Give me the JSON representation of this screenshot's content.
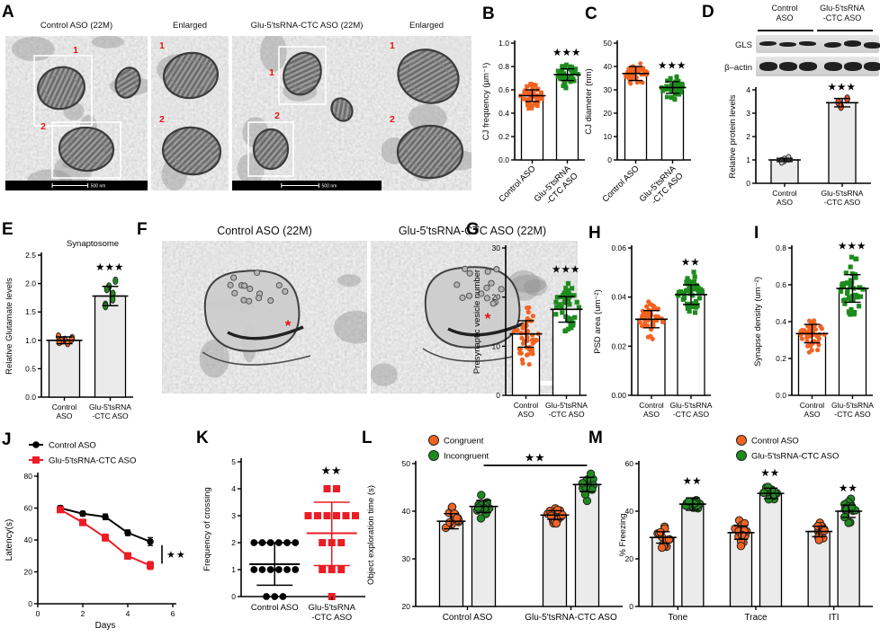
{
  "colors": {
    "orange": "#F26322",
    "green": "#1E8B1E",
    "red": "#EC1C24",
    "dark_red_dot": "#E8501E",
    "gray_dot": "#C8C8C8",
    "bar_gray": "#EBEBEB",
    "bar_white": "#FFFFFF",
    "black": "#000000",
    "em_bg": "#C4C4C4"
  },
  "panels": {
    "A": {
      "letter": "A",
      "titles": [
        "Control ASO (22M)",
        "Enlarged",
        "Glu-5'tsRNA-CTC ASO (22M)",
        "Enlarged"
      ],
      "region_labels": [
        "1",
        "2"
      ],
      "scale_label": "500 nm"
    },
    "B": {
      "letter": "B"
    },
    "C": {
      "letter": "C"
    },
    "D": {
      "letter": "D",
      "blot": {
        "group_headers": [
          "Control\nASO",
          "Glu-5'tsRNA\n-CTC ASO"
        ],
        "row_labels": [
          "GLS",
          "β–actin"
        ],
        "lanes_per_group": 3
      }
    },
    "E": {
      "letter": "E"
    },
    "F": {
      "letter": "F",
      "titles": [
        "Control ASO (22M)",
        "Glu-5'tsRNA-CTC ASO (22M)"
      ],
      "marker": "*"
    },
    "G": {
      "letter": "G"
    },
    "H": {
      "letter": "H"
    },
    "I": {
      "letter": "I"
    },
    "J": {
      "letter": "J"
    },
    "K": {
      "letter": "K"
    },
    "L": {
      "letter": "L"
    },
    "M": {
      "letter": "M"
    }
  },
  "chart_data": [
    {
      "id": "B",
      "type": "bar",
      "ylabel": "CJ frequency (µm⁻¹)",
      "ylim": [
        0,
        1
      ],
      "yticks": [
        "0.0",
        "0.2",
        "0.4",
        "0.6",
        "0.8",
        "1.0"
      ],
      "categories": [
        [
          "Control ASO"
        ],
        [
          "Glu-5'tsRNA",
          "-CTC ASO"
        ]
      ],
      "bar_fill": "#FFFFFF",
      "series": [
        {
          "name": "Control ASO",
          "mean": 0.55,
          "sd": 0.05,
          "n": 48,
          "color": "#F26322",
          "shape": "square"
        },
        {
          "name": "Glu-5'tsRNA-CTC ASO",
          "mean": 0.73,
          "sd": 0.05,
          "n": 48,
          "color": "#1E8B1E",
          "shape": "square",
          "sig": "***"
        }
      ]
    },
    {
      "id": "C",
      "type": "bar",
      "ylabel": "CJ diameter (nm)",
      "ylim": [
        0,
        50
      ],
      "yticks": [
        "0",
        "10",
        "20",
        "30",
        "40",
        "50"
      ],
      "categories": [
        [
          "Control ASO"
        ],
        [
          "Glu-5'tsRNA",
          "-CTC ASO"
        ]
      ],
      "bar_fill": "#FFFFFF",
      "series": [
        {
          "name": "Control ASO",
          "mean": 37,
          "sd": 3,
          "n": 48,
          "color": "#F26322",
          "shape": "circle"
        },
        {
          "name": "Glu-5'tsRNA-CTC ASO",
          "mean": 31,
          "sd": 2.5,
          "n": 48,
          "color": "#1E8B1E",
          "shape": "square",
          "sig": "***"
        }
      ]
    },
    {
      "id": "D",
      "type": "bar",
      "ylabel": "Relative protein levels",
      "ylim": [
        0,
        4
      ],
      "yticks": [
        "0",
        "1",
        "2",
        "3",
        "4"
      ],
      "categories": [
        [
          "Control",
          "ASO"
        ],
        [
          "Glu-5'tsRNA",
          "-CTC ASO"
        ]
      ],
      "bar_fill": "#EBEBEB",
      "series": [
        {
          "name": "Control ASO",
          "mean": 1.0,
          "sd": 0.07,
          "points": [
            1.07,
            1.0,
            0.94
          ],
          "color": "#C8C8C8",
          "shape": "ellipse"
        },
        {
          "name": "Glu-5'tsRNA-CTC ASO",
          "mean": 3.45,
          "sd": 0.18,
          "points": [
            3.62,
            3.47,
            3.28
          ],
          "color": "#E8501E",
          "shape": "ellipse",
          "sig": "***"
        }
      ]
    },
    {
      "id": "E",
      "type": "bar",
      "title": "Synaptosome",
      "ylabel": "Relative Glutamate levels",
      "ylim": [
        0,
        2.5
      ],
      "yticks": [
        "0.0",
        "0.5",
        "1.0",
        "1.5",
        "2.0",
        "2.5"
      ],
      "categories": [
        [
          "Control",
          "ASO"
        ],
        [
          "Glu-5'tsRNA",
          "-CTC ASO"
        ]
      ],
      "bar_fill": "#EBEBEB",
      "series": [
        {
          "name": "Control ASO",
          "mean": 1.0,
          "sd": 0.06,
          "points": [
            1.07,
            1.04,
            1.01,
            0.99,
            0.97,
            0.95,
            1.02
          ],
          "color": "#F26322",
          "shape": "ellipse"
        },
        {
          "name": "Glu-5'tsRNA-CTC ASO",
          "mean": 1.78,
          "sd": 0.17,
          "points": [
            2.05,
            1.95,
            1.9,
            1.82,
            1.72,
            1.63,
            1.6
          ],
          "color": "#1E8B1E",
          "shape": "ellipse",
          "sig": "***"
        }
      ]
    },
    {
      "id": "G",
      "type": "bar",
      "ylabel": "Presynaptic vesicle number",
      "ylim": [
        0,
        30
      ],
      "yticks": [
        "0",
        "10",
        "20",
        "30"
      ],
      "categories": [
        [
          "Control",
          "ASO"
        ],
        [
          "Glu-5'tsRNA",
          "-CTC ASO"
        ]
      ],
      "bar_fill": "#FFFFFF",
      "series": [
        {
          "name": "Control ASO",
          "mean": 12.5,
          "sd": 2.7,
          "n": 48,
          "color": "#F26322",
          "shape": "circle"
        },
        {
          "name": "Glu-5'tsRNA-CTC ASO",
          "mean": 17.5,
          "sd": 2.6,
          "n": 44,
          "color": "#1E8B1E",
          "shape": "square",
          "sig": "***"
        }
      ]
    },
    {
      "id": "H",
      "type": "bar",
      "ylabel": "PSD area (um⁻²)",
      "ylim": [
        0,
        0.06
      ],
      "yticks": [
        "0.00",
        "0.02",
        "0.04",
        "0.06"
      ],
      "categories": [
        [
          "Control",
          "ASO"
        ],
        [
          "Glu-5'tsRNA",
          "-CTC ASO"
        ]
      ],
      "bar_fill": "#FFFFFF",
      "series": [
        {
          "name": "Control ASO",
          "mean": 0.031,
          "sd": 0.0035,
          "n": 44,
          "color": "#F26322",
          "shape": "circle"
        },
        {
          "name": "Glu-5'tsRNA-CTC ASO",
          "mean": 0.041,
          "sd": 0.004,
          "n": 44,
          "color": "#1E8B1E",
          "shape": "square",
          "sig": "**"
        }
      ]
    },
    {
      "id": "I",
      "type": "bar",
      "ylabel": "Synapse density (um⁻²)",
      "ylim": [
        0,
        0.8
      ],
      "yticks": [
        "0.0",
        "0.2",
        "0.4",
        "0.6",
        "0.8"
      ],
      "categories": [
        [
          "Control",
          "ASO"
        ],
        [
          "Glu-5'tsRNA",
          "-CTC ASO"
        ]
      ],
      "bar_fill": "#FFFFFF",
      "series": [
        {
          "name": "Control ASO",
          "mean": 0.335,
          "sd": 0.05,
          "n": 46,
          "color": "#F26322",
          "shape": "circle"
        },
        {
          "name": "Glu-5'tsRNA-CTC ASO",
          "mean": 0.58,
          "sd": 0.075,
          "n": 46,
          "color": "#1E8B1E",
          "shape": "square",
          "sig": "***"
        }
      ]
    },
    {
      "id": "J",
      "type": "line",
      "ylabel": "Latency(s)",
      "xlabel": "Days",
      "ylim": [
        0,
        80
      ],
      "yticks": [
        "0",
        "20",
        "40",
        "60",
        "80"
      ],
      "xlim": [
        0,
        6
      ],
      "xticks": [
        "0",
        "2",
        "4",
        "6"
      ],
      "sig": "**",
      "series": [
        {
          "name": "Control ASO",
          "color": "#000000",
          "marker": "circle",
          "x": [
            1,
            2,
            3,
            4,
            5
          ],
          "y": [
            60,
            56.5,
            54.5,
            44.5,
            39
          ],
          "err": [
            1.5,
            1.5,
            1.8,
            1.8,
            2.5
          ]
        },
        {
          "name": "Glu-5'tsRNA-CTC ASO",
          "color": "#EC1C24",
          "marker": "square",
          "x": [
            1,
            2,
            3,
            4,
            5
          ],
          "y": [
            59,
            51,
            41.5,
            30,
            24
          ],
          "err": [
            1.5,
            2,
            2.2,
            2,
            2.5
          ]
        }
      ]
    },
    {
      "id": "K",
      "type": "dotplot",
      "ylabel": "Frequency of crossing",
      "ylim": [
        0,
        5
      ],
      "yticks": [
        "0",
        "1",
        "2",
        "3",
        "4",
        "5"
      ],
      "categories": [
        [
          "Control ASO"
        ],
        [
          "Glu-5'tsRNA",
          "-CTC ASO"
        ]
      ],
      "groups": [
        {
          "name": "Control ASO",
          "color": "#000000",
          "marker": "circle",
          "values": [
            0,
            0,
            0,
            1,
            1,
            1,
            1,
            1,
            1,
            2,
            2,
            2,
            2,
            2,
            2
          ],
          "mean": 1.2,
          "err_low": 0.42,
          "err_high": 2.0
        },
        {
          "name": "Glu-5'tsRNA-CTC ASO",
          "color": "#EC1C24",
          "marker": "square",
          "values": [
            0,
            1,
            1,
            1,
            2,
            2,
            2,
            3,
            3,
            3,
            3,
            3,
            3,
            4,
            4
          ],
          "mean": 2.35,
          "err_low": 1.15,
          "err_high": 3.5,
          "sig": "**"
        }
      ]
    },
    {
      "id": "L",
      "type": "bar",
      "ylabel": "Object exploration time (s)",
      "ylim": [
        20,
        50
      ],
      "yticks": [
        "20",
        "30",
        "40",
        "50"
      ],
      "categories": [
        [
          "Control ASO"
        ],
        [
          "Glu-5'tsRNA-CTC ASO"
        ]
      ],
      "bar_fill": "#EBEBEB",
      "legend": [
        "Congruent",
        "Incongruent"
      ],
      "sig_line": {
        "label": "**",
        "from_bar": 1,
        "to_bar": 3
      },
      "series": [
        {
          "name": "Congruent",
          "color": "#F26322",
          "shape": "circleO",
          "means": [
            37.9,
            39.2
          ],
          "sds": [
            1.6,
            0.9
          ],
          "n": 15
        },
        {
          "name": "Incongruent",
          "color": "#1E8B1E",
          "shape": "circleO",
          "means": [
            41.0,
            45.6
          ],
          "sds": [
            1.3,
            1.5
          ],
          "n": 15
        }
      ]
    },
    {
      "id": "M",
      "type": "bar",
      "ylabel": "% Freezing",
      "ylim": [
        0,
        60
      ],
      "yticks": [
        "0",
        "20",
        "40",
        "60"
      ],
      "categories": [
        [
          "Tone"
        ],
        [
          "Trace"
        ],
        [
          "ITI"
        ]
      ],
      "bar_fill": "#EBEBEB",
      "legend": [
        "Control ASO",
        "Glu-5'tsRNA-CTC ASO"
      ],
      "series": [
        {
          "name": "Control ASO",
          "color": "#F26322",
          "shape": "circleO",
          "means": [
            29,
            31,
            31.5
          ],
          "sds": [
            2.4,
            2.8,
            2.2
          ],
          "n": 14
        },
        {
          "name": "Glu-5'tsRNA-CTC ASO",
          "color": "#1E8B1E",
          "shape": "circleO",
          "means": [
            43,
            47.5,
            40
          ],
          "sds": [
            2.6,
            2.2,
            2.6
          ],
          "n": 14,
          "sigs": [
            "**",
            "**",
            "**"
          ]
        }
      ]
    }
  ]
}
